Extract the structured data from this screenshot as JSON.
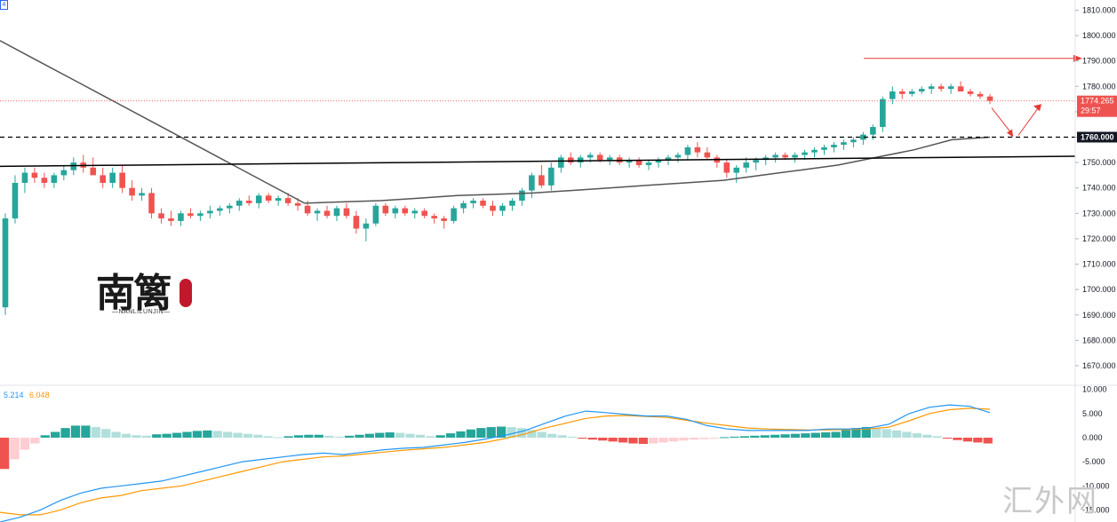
{
  "corner_badge": "4",
  "chart_data": [
    {
      "type": "candlestick",
      "title": "",
      "price_axis": {
        "min": 1663,
        "max": 1814,
        "ticks": [
          "1810.000",
          "1800.000",
          "1790.000",
          "1780.000",
          "1770.000",
          "1760.000",
          "1750.000",
          "1740.000",
          "1730.000",
          "1720.000",
          "1710.000",
          "1700.000",
          "1690.000",
          "1680.000",
          "1670.000"
        ]
      },
      "last_price": "1774.265",
      "countdown": "29:57",
      "level_label": "1760.000",
      "colors": {
        "up": "#26a69a",
        "down": "#ef5350",
        "ma": "#555555",
        "trendline": "#000000",
        "arrow": "#e53935"
      },
      "candles_ohlc": [
        [
          1693,
          1730,
          1690,
          1728
        ],
        [
          1728,
          1745,
          1726,
          1742
        ],
        [
          1742,
          1748,
          1738,
          1746
        ],
        [
          1746,
          1748,
          1742,
          1744
        ],
        [
          1744,
          1746,
          1740,
          1742
        ],
        [
          1742,
          1746,
          1740,
          1745
        ],
        [
          1745,
          1749,
          1743,
          1747
        ],
        [
          1747,
          1752,
          1745,
          1750
        ],
        [
          1750,
          1753,
          1746,
          1748
        ],
        [
          1748,
          1752,
          1747,
          1745
        ],
        [
          1745,
          1748,
          1740,
          1742
        ],
        [
          1742,
          1748,
          1740,
          1746
        ],
        [
          1746,
          1749,
          1738,
          1740
        ],
        [
          1740,
          1743,
          1735,
          1737
        ],
        [
          1737,
          1740,
          1735,
          1738
        ],
        [
          1738,
          1740,
          1728,
          1730
        ],
        [
          1730,
          1732,
          1726,
          1728
        ],
        [
          1728,
          1731,
          1725,
          1727
        ],
        [
          1727,
          1731,
          1725,
          1730
        ],
        [
          1730,
          1732,
          1728,
          1729
        ],
        [
          1729,
          1731,
          1727,
          1730
        ],
        [
          1730,
          1733,
          1728,
          1731
        ],
        [
          1731,
          1733,
          1729,
          1732
        ],
        [
          1732,
          1734,
          1730,
          1733
        ],
        [
          1733,
          1736,
          1731,
          1735
        ],
        [
          1735,
          1737,
          1733,
          1734
        ],
        [
          1734,
          1738,
          1732,
          1737
        ],
        [
          1737,
          1738,
          1734,
          1735
        ],
        [
          1735,
          1737,
          1733,
          1736
        ],
        [
          1736,
          1738,
          1733,
          1734
        ],
        [
          1734,
          1736,
          1731,
          1733
        ],
        [
          1733,
          1735,
          1729,
          1730
        ],
        [
          1730,
          1732,
          1727,
          1731
        ],
        [
          1731,
          1733,
          1728,
          1729
        ],
        [
          1729,
          1733,
          1727,
          1732
        ],
        [
          1732,
          1734,
          1728,
          1729
        ],
        [
          1729,
          1731,
          1722,
          1724
        ],
        [
          1724,
          1728,
          1719,
          1726
        ],
        [
          1726,
          1734,
          1725,
          1733
        ],
        [
          1733,
          1734,
          1729,
          1730
        ],
        [
          1730,
          1733,
          1728,
          1732
        ],
        [
          1732,
          1733,
          1729,
          1730
        ],
        [
          1730,
          1732,
          1728,
          1731
        ],
        [
          1731,
          1732,
          1728,
          1729
        ],
        [
          1729,
          1730,
          1726,
          1728
        ],
        [
          1728,
          1729,
          1724,
          1727
        ],
        [
          1727,
          1733,
          1726,
          1732
        ],
        [
          1732,
          1735,
          1730,
          1734
        ],
        [
          1734,
          1736,
          1732,
          1735
        ],
        [
          1735,
          1736,
          1732,
          1733
        ],
        [
          1733,
          1735,
          1729,
          1731
        ],
        [
          1731,
          1734,
          1729,
          1733
        ],
        [
          1733,
          1736,
          1731,
          1735
        ],
        [
          1735,
          1740,
          1733,
          1739
        ],
        [
          1739,
          1746,
          1736,
          1745
        ],
        [
          1745,
          1749,
          1740,
          1741
        ],
        [
          1741,
          1750,
          1739,
          1748
        ],
        [
          1748,
          1753,
          1746,
          1752
        ],
        [
          1752,
          1754,
          1749,
          1750
        ],
        [
          1750,
          1753,
          1748,
          1752
        ],
        [
          1752,
          1754,
          1750,
          1753
        ],
        [
          1753,
          1754,
          1750,
          1751
        ],
        [
          1751,
          1753,
          1749,
          1752
        ],
        [
          1752,
          1753,
          1749,
          1750
        ],
        [
          1750,
          1752,
          1748,
          1751
        ],
        [
          1751,
          1752,
          1748,
          1749
        ],
        [
          1749,
          1751,
          1747,
          1750
        ],
        [
          1750,
          1752,
          1748,
          1751
        ],
        [
          1751,
          1753,
          1749,
          1752
        ],
        [
          1752,
          1754,
          1750,
          1753
        ],
        [
          1753,
          1757,
          1751,
          1756
        ],
        [
          1756,
          1758,
          1752,
          1754
        ],
        [
          1754,
          1756,
          1751,
          1752
        ],
        [
          1752,
          1753,
          1748,
          1750
        ],
        [
          1750,
          1751,
          1744,
          1746
        ],
        [
          1746,
          1749,
          1742,
          1748
        ],
        [
          1748,
          1752,
          1746,
          1750
        ],
        [
          1750,
          1752,
          1747,
          1751
        ],
        [
          1751,
          1753,
          1749,
          1752
        ],
        [
          1752,
          1754,
          1750,
          1753
        ],
        [
          1753,
          1754,
          1751,
          1752
        ],
        [
          1752,
          1754,
          1750,
          1753
        ],
        [
          1753,
          1755,
          1751,
          1754
        ],
        [
          1754,
          1756,
          1752,
          1755
        ],
        [
          1755,
          1757,
          1753,
          1756
        ],
        [
          1756,
          1758,
          1754,
          1757
        ],
        [
          1757,
          1759,
          1755,
          1758
        ],
        [
          1758,
          1760,
          1756,
          1759
        ],
        [
          1759,
          1762,
          1757,
          1761
        ],
        [
          1761,
          1765,
          1759,
          1764
        ],
        [
          1764,
          1776,
          1762,
          1775
        ],
        [
          1775,
          1780,
          1773,
          1778
        ],
        [
          1778,
          1779,
          1775,
          1777
        ],
        [
          1777,
          1779,
          1776,
          1778
        ],
        [
          1778,
          1780,
          1777,
          1779
        ],
        [
          1779,
          1781,
          1777,
          1780
        ],
        [
          1780,
          1781,
          1778,
          1779
        ],
        [
          1779,
          1781,
          1777,
          1780
        ],
        [
          1780,
          1782,
          1778,
          1778
        ],
        [
          1778,
          1779,
          1776,
          1777
        ],
        [
          1777,
          1778,
          1775,
          1776
        ],
        [
          1776,
          1777,
          1773,
          1774.3
        ]
      ],
      "moving_average": [
        1798,
        1790,
        1782,
        1774,
        1766,
        1758,
        1750,
        1742,
        1734,
        1734.5,
        1735,
        1736,
        1737,
        1737.5,
        1738,
        1739,
        1740,
        1741,
        1742,
        1743,
        1745,
        1747,
        1749,
        1752,
        1755,
        1759,
        1760
      ],
      "levels": [
        1760,
        1791
      ],
      "trendline": [
        1748.5,
        1752.5
      ],
      "projection": [
        1774.3,
        1760,
        1773
      ]
    },
    {
      "type": "macd",
      "macd_value": "5.214",
      "signal_value": "6.048",
      "y_axis": {
        "min": -17.5,
        "max": 10.5,
        "ticks": [
          "10.000",
          "5.000",
          "0.000",
          "-5.000",
          "-10.000",
          "-15.000"
        ]
      },
      "colors": {
        "macd": "#2196f3",
        "signal": "#ff9800"
      },
      "macd_line": [
        -17.5,
        -16.5,
        -15,
        -13,
        -11.5,
        -10.5,
        -10,
        -9.5,
        -9,
        -8,
        -7,
        -6,
        -5,
        -4.5,
        -4,
        -3.5,
        -3.2,
        -3.5,
        -3,
        -2.5,
        -2.2,
        -2,
        -1.5,
        -1,
        -0.3,
        0.5,
        1.5,
        3,
        4.5,
        5.5,
        5.2,
        4.8,
        4.5,
        4.5,
        3.8,
        2.5,
        1.8,
        1.5,
        1.5,
        1.5,
        1.5,
        1.8,
        1.8,
        2,
        2.8,
        5,
        6.3,
        6.8,
        6.5,
        5.2
      ],
      "signal_line": [
        -15.5,
        -16,
        -16,
        -15,
        -13.5,
        -12.5,
        -12,
        -11,
        -10.5,
        -10,
        -9,
        -8,
        -7,
        -6,
        -5,
        -4.5,
        -4,
        -3.8,
        -3.4,
        -3,
        -2.6,
        -2.3,
        -2,
        -1.5,
        -1,
        -0.2,
        0.8,
        2,
        3,
        4,
        4.5,
        4.6,
        4.4,
        4.2,
        3.6,
        3,
        2.5,
        2,
        1.8,
        1.7,
        1.6,
        1.6,
        1.7,
        1.8,
        2.2,
        3.5,
        5,
        5.8,
        6.1,
        5.9
      ],
      "histogram": [
        -6.5,
        -4.5,
        -2.5,
        -1.2,
        0.5,
        1.2,
        2,
        2.5,
        2.5,
        2.2,
        1.8,
        1.2,
        0.8,
        0.5,
        0.4,
        0.7,
        0.8,
        1,
        1.2,
        1.4,
        1.5,
        1.4,
        1.2,
        1,
        0.8,
        0.6,
        0.3,
        0.1,
        0.3,
        0.5,
        0.6,
        0.6,
        0.4,
        0.2,
        0.4,
        0.6,
        0.8,
        1,
        1.1,
        1,
        0.8,
        0.6,
        0.3,
        0.5,
        0.9,
        1.3,
        1.7,
        2,
        2.2,
        2.3,
        2.2,
        2,
        1.6,
        1.2,
        0.8,
        0.5,
        0.2,
        -0.2,
        -0.4,
        -0.6,
        -0.8,
        -1,
        -1.2,
        -1.3,
        -1.2,
        -1,
        -0.8,
        -0.6,
        -0.4,
        -0.3,
        -0.2,
        0.1,
        0.2,
        0.3,
        0.4,
        0.5,
        0.6,
        0.7,
        0.8,
        0.9,
        1,
        1.1,
        1.2,
        1.6,
        2,
        2.2,
        2,
        1.8,
        1.5,
        1.2,
        0.9,
        0.6,
        0.3,
        -0.2,
        -0.5,
        -0.8,
        -1.0,
        -1.2
      ]
    }
  ],
  "logo": {
    "main": "南篱",
    "sub": "—NANLILUNJIN—"
  },
  "watermark": "汇外网"
}
